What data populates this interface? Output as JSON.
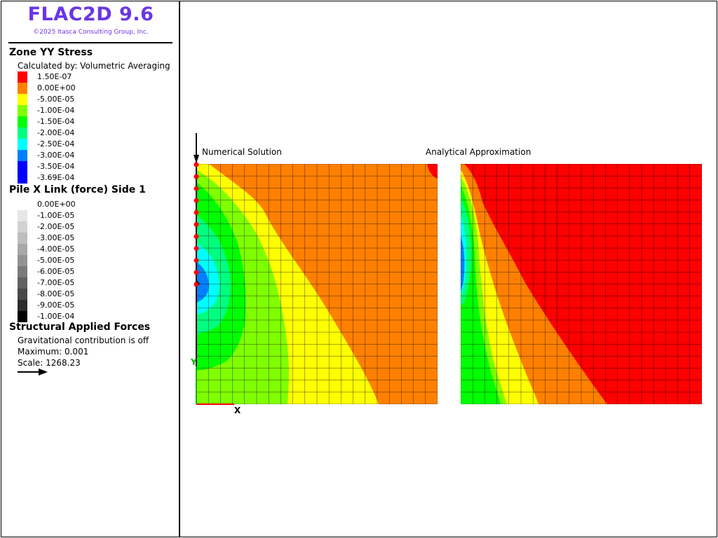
{
  "header": {
    "app_title": "FLAC2D 9.6",
    "copyright": "©2025 Itasca Consulting Group, Inc."
  },
  "zone_stress_legend": {
    "title": "Zone YY Stress",
    "subtitle": "Calculated by: Volumetric Averaging",
    "items": [
      {
        "label": "1.50E-07",
        "color": "#ff0000"
      },
      {
        "label": "0.00E+00",
        "color": "#ff8000"
      },
      {
        "label": "-5.00E-05",
        "color": "#ffff00"
      },
      {
        "label": "-1.00E-04",
        "color": "#80ff00"
      },
      {
        "label": "-1.50E-04",
        "color": "#00ff00"
      },
      {
        "label": "-2.00E-04",
        "color": "#00ff80"
      },
      {
        "label": "-2.50E-04",
        "color": "#00ffff"
      },
      {
        "label": "-3.00E-04",
        "color": "#0080ff"
      },
      {
        "label": "-3.50E-04",
        "color": "#0000ff"
      },
      {
        "label": "-3.69E-04",
        "color": "#0000ff"
      }
    ]
  },
  "pile_legend": {
    "title": "Pile X Link (force) Side 1",
    "items": [
      {
        "label": "0.00E+00",
        "color": "#ffffff"
      },
      {
        "label": "-1.00E-05",
        "color": "#e6e6e6"
      },
      {
        "label": "-2.00E-05",
        "color": "#d2d2d2"
      },
      {
        "label": "-3.00E-05",
        "color": "#bebebe"
      },
      {
        "label": "-4.00E-05",
        "color": "#a8a8a8"
      },
      {
        "label": "-5.00E-05",
        "color": "#929292"
      },
      {
        "label": "-6.00E-05",
        "color": "#7a7a7a"
      },
      {
        "label": "-7.00E-05",
        "color": "#626262"
      },
      {
        "label": "-8.00E-05",
        "color": "#484848"
      },
      {
        "label": "-9.00E-05",
        "color": "#2c2c2c"
      },
      {
        "label": "-1.00E-04",
        "color": "#000000"
      }
    ]
  },
  "applied_forces": {
    "title": "Structural Applied Forces",
    "gravity": "Gravitational contribution is off",
    "maximum": "Maximum: 0.001",
    "scale": "Scale: 1268.23"
  },
  "plot": {
    "left_caption": "Numerical Solution",
    "right_caption": "Analytical Approximation",
    "x_axis_letter": "X",
    "y_axis_letter": "Y",
    "grid_divisions": 20,
    "pile_node_count": 11,
    "colors": {
      "red": "#ff0000",
      "orange": "#ff8000",
      "yellow": "#ffff00",
      "lime": "#80ff00",
      "green": "#00ff00",
      "springgreen": "#00ff80",
      "cyan": "#00ffff",
      "azure": "#0080ff",
      "blue": "#0000ff",
      "axis_x": "#ff0000",
      "axis_y": "#00b000",
      "pile": "#000000",
      "node": "#ff0000"
    }
  }
}
